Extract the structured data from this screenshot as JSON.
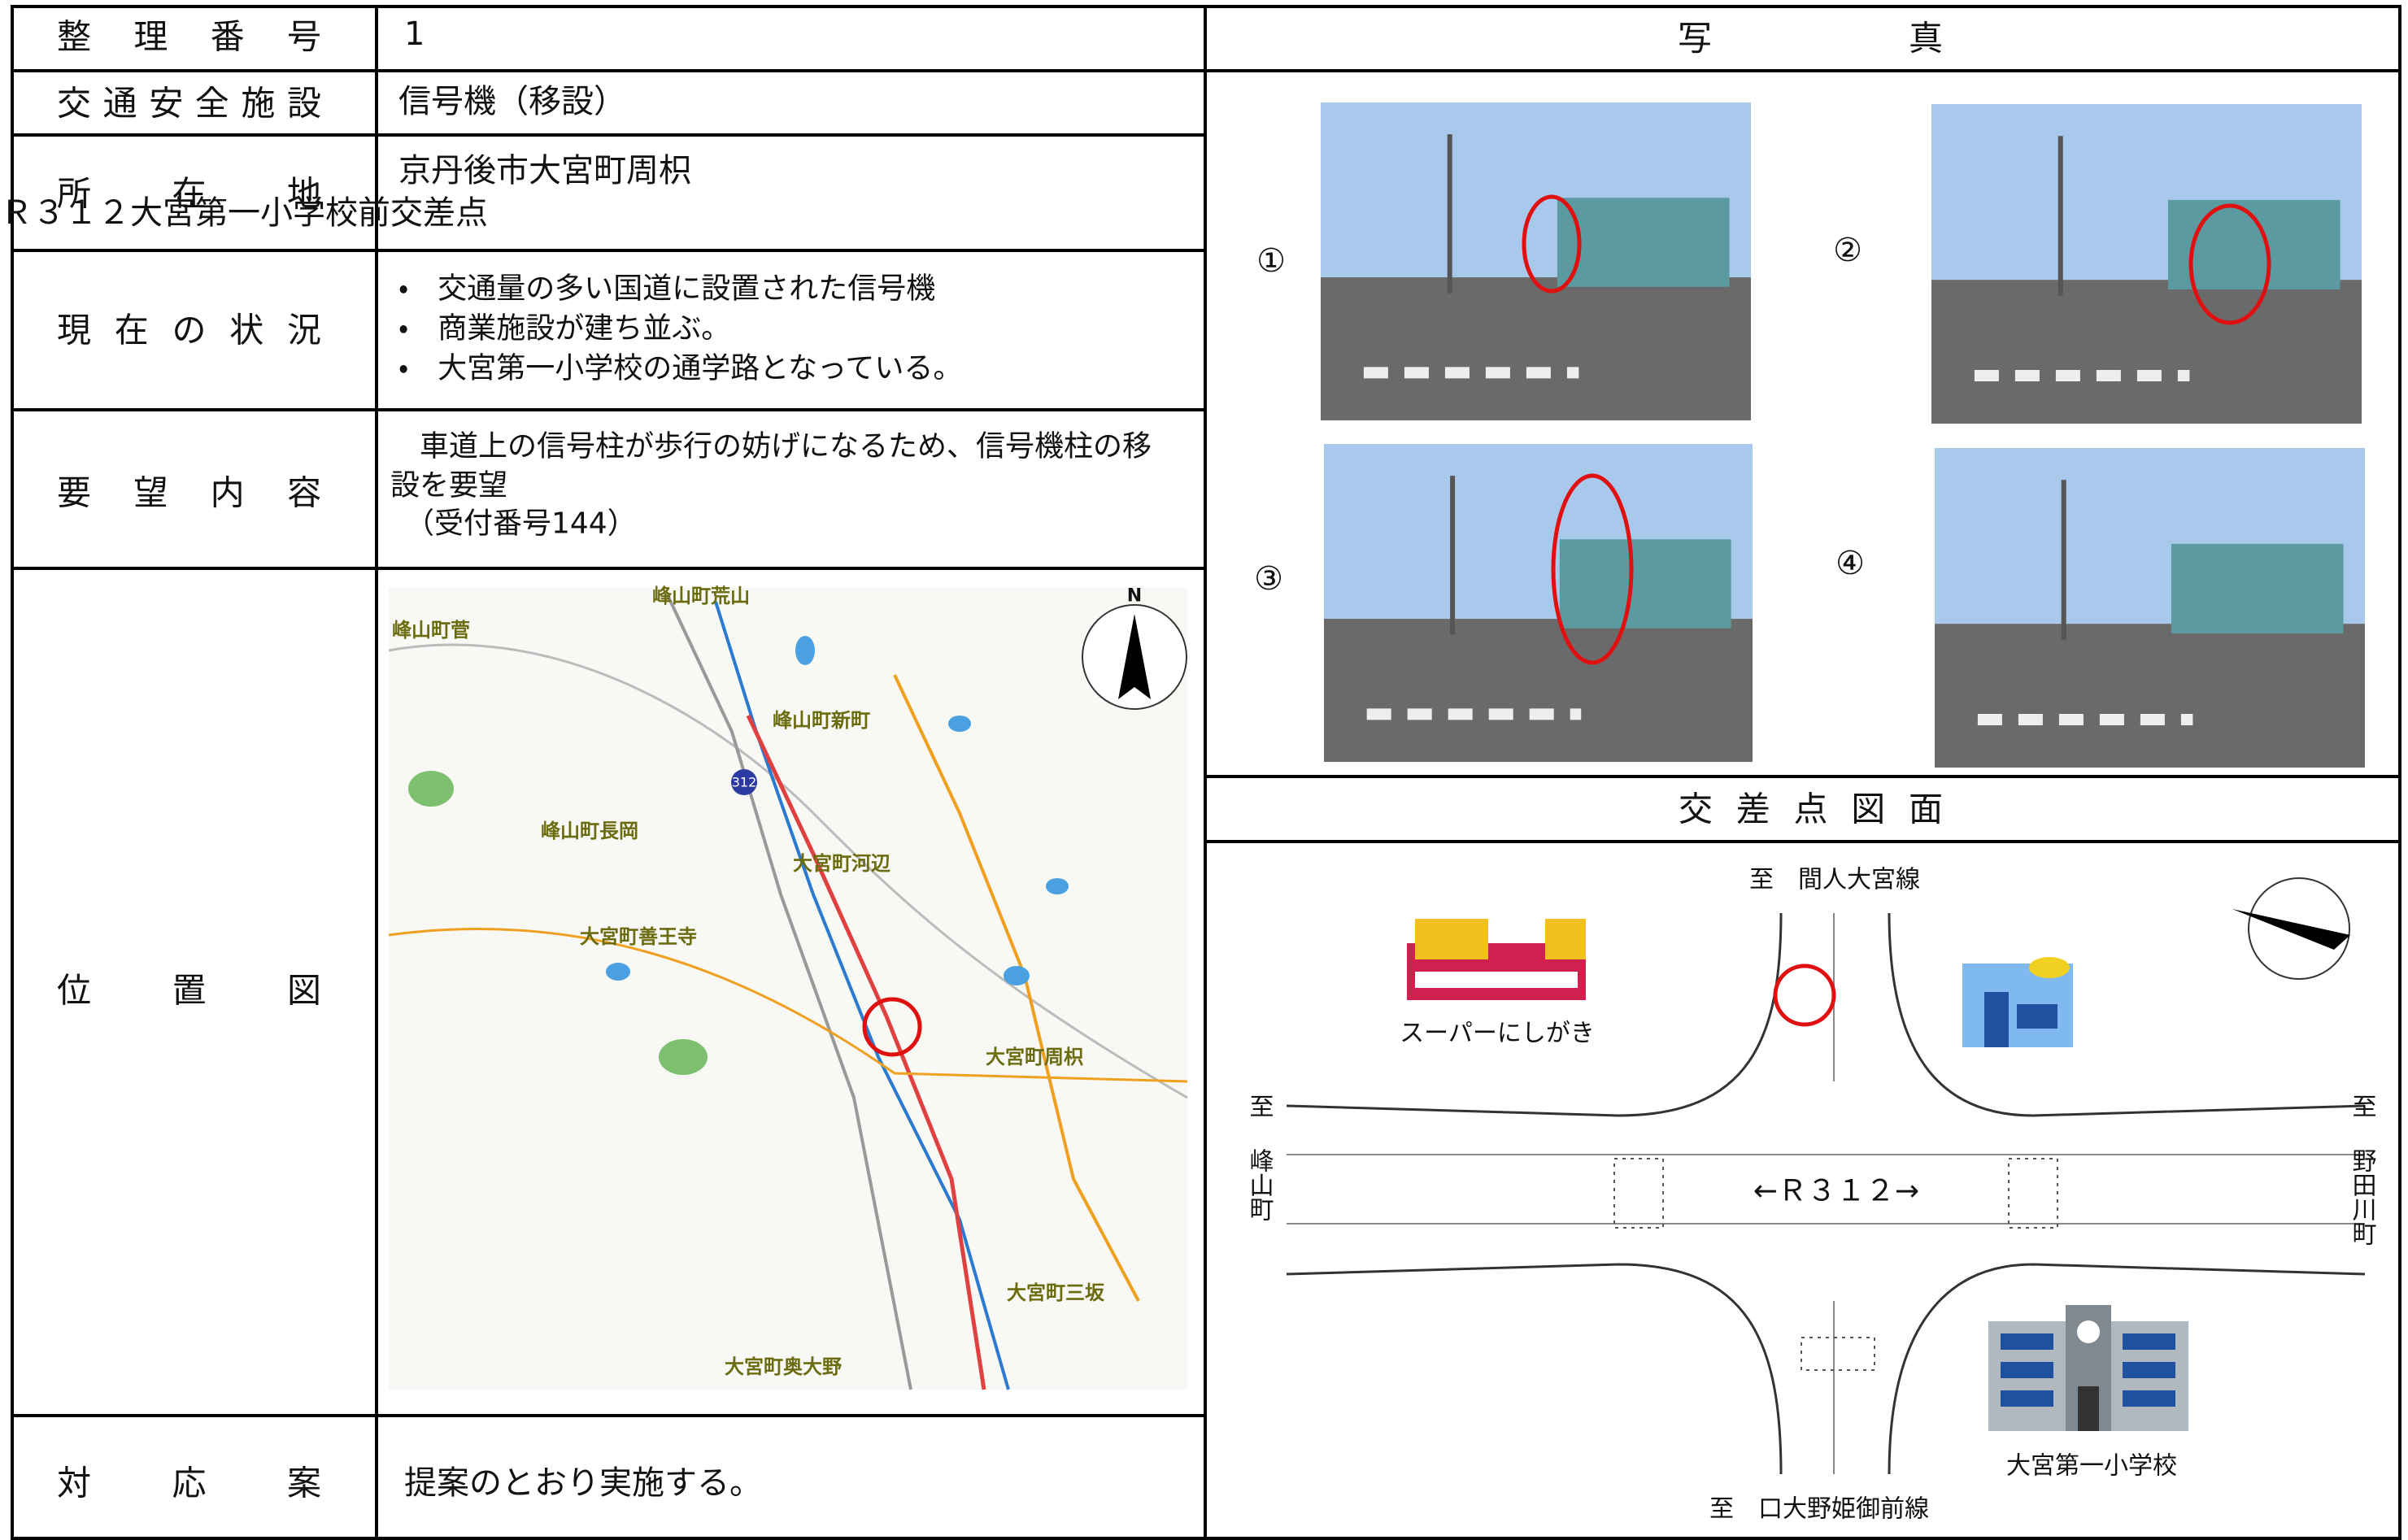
{
  "table": {
    "rows": [
      {
        "label": "整理番号",
        "value": [
          "1"
        ]
      },
      {
        "label": "交通安全施設",
        "value": [
          "信号機（移設）"
        ]
      },
      {
        "label": "所在地",
        "value": [
          "京丹後市大宮町周枳",
          "Ｒ３１２大宮第一小学校前交差点"
        ]
      },
      {
        "label": "現在の状況",
        "value": [
          "・　交通量の多い国道に設置された信号機",
          "・　商業施設が建ち並ぶ。",
          "・　大宮第一小学校の通学路となっている。"
        ]
      },
      {
        "label": "要望内容",
        "value": [
          "　車道上の信号柱が歩行の妨げになるため、信号機柱の移",
          "設を要望",
          "　（受付番号144）"
        ]
      },
      {
        "label": "位置図",
        "value": []
      },
      {
        "label": "対応案",
        "value": [
          "提案のとおり実施する。"
        ]
      }
    ],
    "map": {
      "labels": [
        "峰山町荒山",
        "峰山町菅",
        "峰山町新町",
        "峰山町長岡",
        "大宮町河辺",
        "大宮町善王寺",
        "大宮町周枳",
        "大宮町三坂",
        "大宮町奥大野"
      ],
      "route": "312",
      "north": "N"
    }
  },
  "photos": {
    "title": "写真",
    "labels": [
      "①",
      "②",
      "③",
      "④"
    ]
  },
  "diagram": {
    "title": "交差点図面",
    "north_road": "至　間人大宮線",
    "south_road": "至　口大野姫御前線",
    "west_to": "至",
    "west_place": "峰山町",
    "east_to": "至",
    "east_place": "野田川町",
    "road": "←Ｒ３１２→",
    "shop": "スーパーにしがき",
    "school": "大宮第一小学校"
  }
}
